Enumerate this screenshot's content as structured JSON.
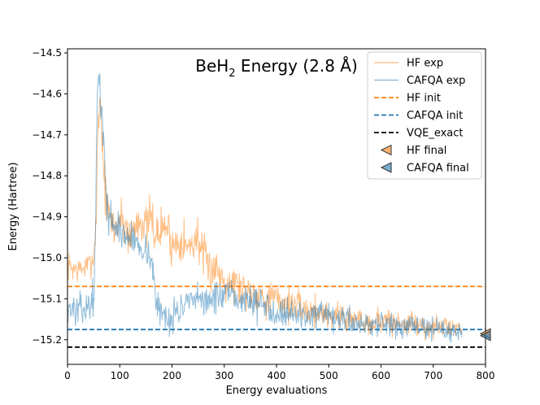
{
  "chart_data": {
    "type": "line",
    "title_main": "BeH",
    "title_sub": "2",
    "title_rest": " Energy (2.8 Å)",
    "xlabel": "Energy evaluations",
    "ylabel": "Energy (Hartree)",
    "xlim": [
      0,
      800
    ],
    "ylim": [
      -15.26,
      -14.49
    ],
    "xticks": [
      0,
      100,
      200,
      300,
      400,
      500,
      600,
      700,
      800
    ],
    "xtick_labels": [
      "0",
      "100",
      "200",
      "300",
      "400",
      "500",
      "600",
      "700",
      "800"
    ],
    "yticks": [
      -14.5,
      -14.6,
      -14.7,
      -14.8,
      -14.9,
      -15.0,
      -15.1,
      -15.2
    ],
    "ytick_labels": [
      "−14.5",
      "−14.6",
      "−14.7",
      "−14.8",
      "−14.9",
      "−15.0",
      "−15.1",
      "−15.2"
    ],
    "colors": {
      "hf": "#ff7f0e",
      "cafqa": "#1f77b4",
      "exact": "#000000"
    },
    "series": [
      {
        "name": "HF exp",
        "style": "line",
        "seed": 7,
        "x": [
          0,
          20,
          40,
          50,
          55,
          58,
          62,
          66,
          70,
          75,
          80,
          90,
          100,
          110,
          120,
          130,
          140,
          150,
          160,
          170,
          180,
          190,
          200,
          210,
          220,
          230,
          240,
          250,
          260,
          270,
          280,
          300,
          320,
          340,
          360,
          380,
          400,
          420,
          440,
          460,
          480,
          500,
          520,
          540,
          560,
          580,
          600,
          620,
          640,
          660,
          680,
          700,
          720,
          740,
          755
        ],
        "values": [
          -15.02,
          -15.03,
          -15.02,
          -15.0,
          -14.9,
          -14.7,
          -14.6,
          -14.7,
          -14.8,
          -14.88,
          -14.9,
          -14.93,
          -14.9,
          -14.92,
          -14.95,
          -14.92,
          -14.9,
          -14.93,
          -14.9,
          -14.95,
          -14.93,
          -14.92,
          -14.97,
          -14.96,
          -14.95,
          -14.98,
          -14.96,
          -14.95,
          -15.0,
          -15.03,
          -15.02,
          -15.05,
          -15.06,
          -15.08,
          -15.08,
          -15.1,
          -15.1,
          -15.11,
          -15.12,
          -15.13,
          -15.13,
          -15.14,
          -15.14,
          -15.15,
          -15.15,
          -15.16,
          -15.15,
          -15.16,
          -15.16,
          -15.16,
          -15.17,
          -15.17,
          -15.17,
          -15.17,
          -15.17
        ],
        "noise": [
          0.03,
          0.03,
          0.03,
          0.03,
          0.04,
          0.05,
          0.05,
          0.05,
          0.05,
          0.05,
          0.05,
          0.05,
          0.05,
          0.05,
          0.05,
          0.05,
          0.05,
          0.05,
          0.05,
          0.05,
          0.05,
          0.05,
          0.05,
          0.05,
          0.05,
          0.05,
          0.05,
          0.05,
          0.05,
          0.05,
          0.05,
          0.045,
          0.045,
          0.045,
          0.04,
          0.04,
          0.04,
          0.04,
          0.035,
          0.035,
          0.035,
          0.035,
          0.035,
          0.035,
          0.03,
          0.03,
          0.03,
          0.03,
          0.03,
          0.03,
          0.025,
          0.025,
          0.025,
          0.02,
          0.02
        ]
      },
      {
        "name": "CAFQA exp",
        "style": "line",
        "seed": 13,
        "x": [
          0,
          20,
          40,
          50,
          54,
          57,
          60,
          64,
          68,
          72,
          76,
          80,
          90,
          100,
          110,
          120,
          130,
          140,
          150,
          160,
          165,
          170,
          180,
          190,
          200,
          220,
          240,
          260,
          280,
          300,
          320,
          340,
          360,
          380,
          400,
          420,
          440,
          460,
          480,
          500,
          520,
          540,
          560,
          580,
          600,
          620,
          640,
          660,
          680,
          700,
          720,
          740,
          755
        ],
        "values": [
          -15.12,
          -15.13,
          -15.12,
          -15.1,
          -14.9,
          -14.6,
          -14.56,
          -14.62,
          -14.7,
          -14.8,
          -14.87,
          -14.9,
          -14.92,
          -14.93,
          -14.95,
          -14.95,
          -14.96,
          -14.97,
          -14.98,
          -15.0,
          -15.05,
          -15.12,
          -15.13,
          -15.15,
          -15.14,
          -15.12,
          -15.11,
          -15.1,
          -15.1,
          -15.09,
          -15.1,
          -15.1,
          -15.11,
          -15.12,
          -15.13,
          -15.13,
          -15.14,
          -15.14,
          -15.14,
          -15.15,
          -15.15,
          -15.15,
          -15.16,
          -15.16,
          -15.16,
          -15.17,
          -15.17,
          -15.17,
          -15.17,
          -15.17,
          -15.18,
          -15.18,
          -15.18
        ],
        "noise": [
          0.035,
          0.035,
          0.035,
          0.04,
          0.04,
          0.04,
          0.04,
          0.04,
          0.04,
          0.04,
          0.04,
          0.04,
          0.035,
          0.035,
          0.035,
          0.035,
          0.035,
          0.035,
          0.035,
          0.035,
          0.035,
          0.035,
          0.035,
          0.035,
          0.035,
          0.035,
          0.035,
          0.035,
          0.035,
          0.035,
          0.035,
          0.035,
          0.035,
          0.035,
          0.035,
          0.035,
          0.035,
          0.03,
          0.03,
          0.03,
          0.03,
          0.03,
          0.03,
          0.03,
          0.03,
          0.03,
          0.03,
          0.03,
          0.025,
          0.025,
          0.025,
          0.02,
          0.02
        ]
      },
      {
        "name": "HF init",
        "style": "dashed",
        "y": -15.07
      },
      {
        "name": "CAFQA init",
        "style": "dashed",
        "y": -15.175
      },
      {
        "name": "VQE_exact",
        "style": "dashed",
        "y": -15.218
      },
      {
        "name": "HF final",
        "style": "marker",
        "x": 800,
        "y": -15.185
      },
      {
        "name": "CAFQA final",
        "style": "marker",
        "x": 800,
        "y": -15.19
      }
    ],
    "legend": [
      "HF exp",
      "CAFQA exp",
      "HF init",
      "CAFQA init",
      "VQE_exact",
      "HF final",
      "CAFQA final"
    ],
    "legend_position": "top-right"
  }
}
